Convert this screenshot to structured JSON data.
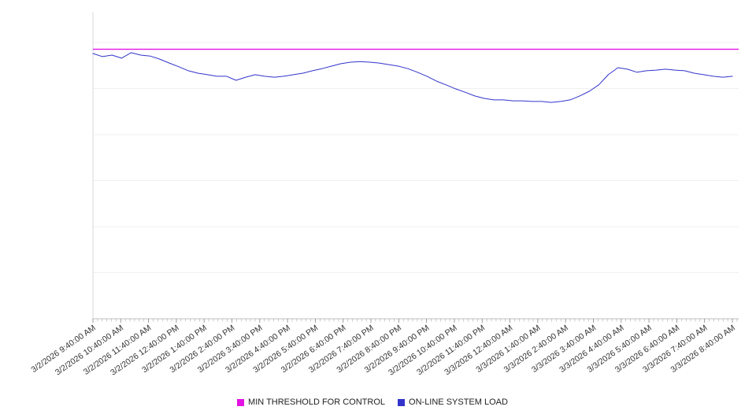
{
  "chart_data": {
    "type": "line",
    "title": "",
    "xlabel": "",
    "ylabel": "",
    "ylim": [
      0,
      100
    ],
    "y_gridlines": [
      15,
      30,
      45,
      60,
      75,
      90
    ],
    "x_label_rotation": -35,
    "legend_position": "bottom",
    "grid": true,
    "x_labels": [
      "3/2/2026 9:40:00 AM",
      "3/2/2026 10:40:00 AM",
      "3/2/2026 11:40:00 AM",
      "3/2/2026 12:40:00 PM",
      "3/2/2026 1:40:00 PM",
      "3/2/2026 2:40:00 PM",
      "3/2/2026 3:40:00 PM",
      "3/2/2026 4:40:00 PM",
      "3/2/2026 5:40:00 PM",
      "3/2/2026 6:40:00 PM",
      "3/2/2026 7:40:00 PM",
      "3/2/2026 8:40:00 PM",
      "3/2/2026 9:40:00 PM",
      "3/2/2026 10:40:00 PM",
      "3/2/2026 11:40:00 PM",
      "3/3/2026 12:40:00 AM",
      "3/3/2026 1:40:00 AM",
      "3/3/2026 2:40:00 AM",
      "3/3/2026 3:40:00 AM",
      "3/3/2026 4:40:00 AM",
      "3/3/2026 5:40:00 AM",
      "3/3/2026 6:40:00 AM",
      "3/3/2026 7:40:00 AM",
      "3/3/2026 8:40:00 AM"
    ],
    "series": [
      {
        "name": "MIN THRESHOLD FOR CONTROL",
        "color": "#e312e3",
        "style": "constant",
        "value": 87.8
      },
      {
        "name": "ON-LINE SYSTEM LOAD",
        "color": "#3333cc",
        "style": "line",
        "values": [
          86.4,
          85.4,
          85.9,
          84.9,
          86.7,
          85.9,
          85.6,
          84.6,
          83.3,
          82.1,
          80.8,
          80.0,
          79.5,
          79.0,
          79.0,
          77.7,
          78.7,
          79.5,
          79.0,
          78.7,
          79.0,
          79.5,
          80.0,
          80.8,
          81.5,
          82.3,
          83.1,
          83.6,
          83.8,
          83.6,
          83.3,
          82.8,
          82.3,
          81.5,
          80.3,
          79.0,
          77.4,
          76.2,
          74.9,
          73.8,
          72.6,
          71.8,
          71.3,
          71.3,
          71.0,
          71.0,
          70.8,
          70.8,
          70.5,
          70.8,
          71.3,
          72.6,
          74.1,
          76.2,
          79.5,
          81.8,
          81.3,
          80.3,
          80.8,
          81.0,
          81.3,
          81.0,
          80.8,
          80.0,
          79.5,
          79.0,
          78.7,
          79.0
        ]
      }
    ]
  }
}
